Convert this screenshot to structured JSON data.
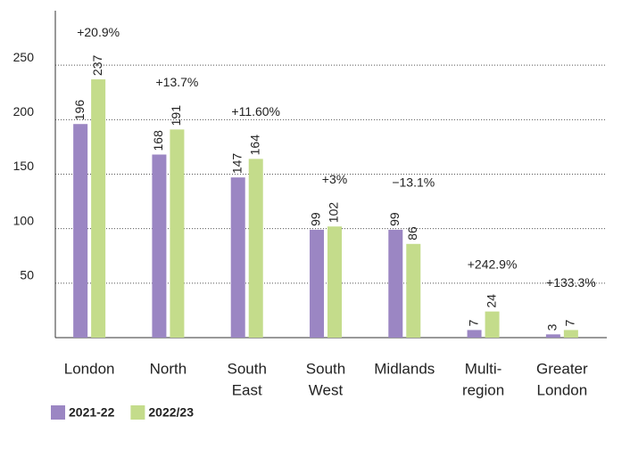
{
  "chart_data": {
    "type": "bar",
    "categories": [
      [
        "London"
      ],
      [
        "North"
      ],
      [
        "South",
        "East"
      ],
      [
        "South",
        "West"
      ],
      [
        "Midlands"
      ],
      [
        "Multi-",
        "region"
      ],
      [
        "Greater",
        "London"
      ]
    ],
    "series": [
      {
        "name": "2021-22",
        "color": "#9b86c3",
        "values": [
          196,
          168,
          147,
          99,
          99,
          7,
          3
        ]
      },
      {
        "name": "2022/23",
        "color": "#c4dc8b",
        "values": [
          237,
          191,
          164,
          102,
          86,
          24,
          7
        ]
      }
    ],
    "annotations": [
      "+20.9%",
      "+13.7%",
      "+11.60%",
      "+3%",
      "−13.1%",
      "+242.9%",
      "+133.3%"
    ],
    "ylim": [
      0,
      300
    ],
    "yticks": [
      50,
      100,
      150,
      200,
      250
    ],
    "grid": true,
    "legend": "bottom-left"
  }
}
